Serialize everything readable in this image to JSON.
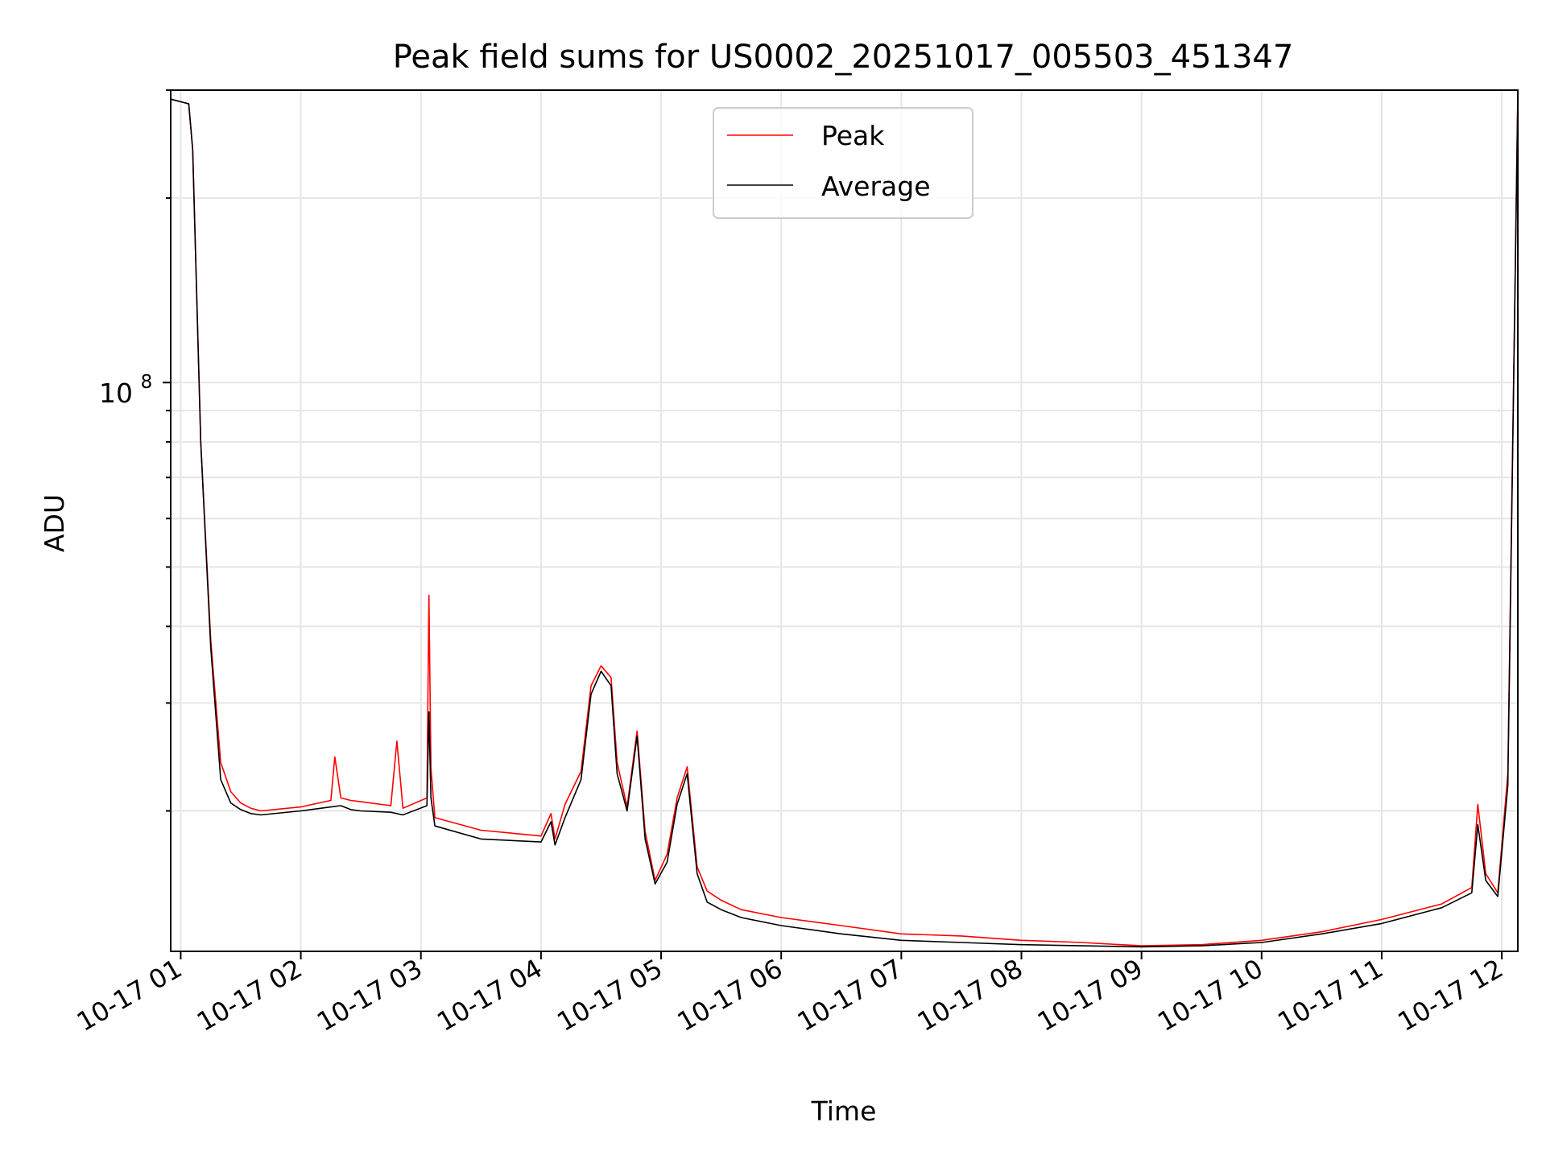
{
  "chart_data": {
    "type": "line",
    "title": "Peak field sums for US0002_20251017_005503_451347",
    "xlabel": "Time",
    "ylabel": "ADU",
    "yscale": "log",
    "ylim": [
      11800000,
      300000000
    ],
    "xlim": [
      "2025-10-17 00:55",
      "2025-10-17 12:08"
    ],
    "grid": true,
    "legend_position": "top-center",
    "x_ticks": [
      "10-17 01",
      "10-17 02",
      "10-17 03",
      "10-17 04",
      "10-17 05",
      "10-17 06",
      "10-17 07",
      "10-17 08",
      "10-17 09",
      "10-17 10",
      "10-17 11",
      "10-17 12"
    ],
    "y_tick_labels": [
      "10",
      "8"
    ],
    "series": [
      {
        "name": "Peak",
        "color": "#ff0000",
        "x": [
          "2025-10-17 00:55",
          "2025-10-17 01:04",
          "2025-10-17 01:06",
          "2025-10-17 01:10",
          "2025-10-17 01:15",
          "2025-10-17 01:20",
          "2025-10-17 01:25",
          "2025-10-17 01:30",
          "2025-10-17 01:35",
          "2025-10-17 01:40",
          "2025-10-17 02:00",
          "2025-10-17 02:15",
          "2025-10-17 02:17",
          "2025-10-17 02:20",
          "2025-10-17 02:25",
          "2025-10-17 02:30",
          "2025-10-17 02:45",
          "2025-10-17 02:48",
          "2025-10-17 02:51",
          "2025-10-17 03:03",
          "2025-10-17 03:04",
          "2025-10-17 03:05",
          "2025-10-17 03:07",
          "2025-10-17 03:30",
          "2025-10-17 04:00",
          "2025-10-17 04:05",
          "2025-10-17 04:07",
          "2025-10-17 04:12",
          "2025-10-17 04:20",
          "2025-10-17 04:25",
          "2025-10-17 04:30",
          "2025-10-17 04:35",
          "2025-10-17 04:38",
          "2025-10-17 04:43",
          "2025-10-17 04:48",
          "2025-10-17 04:52",
          "2025-10-17 04:57",
          "2025-10-17 05:03",
          "2025-10-17 05:08",
          "2025-10-17 05:13",
          "2025-10-17 05:18",
          "2025-10-17 05:23",
          "2025-10-17 05:30",
          "2025-10-17 05:40",
          "2025-10-17 06:00",
          "2025-10-17 06:30",
          "2025-10-17 07:00",
          "2025-10-17 07:30",
          "2025-10-17 08:00",
          "2025-10-17 08:30",
          "2025-10-17 09:00",
          "2025-10-17 09:30",
          "2025-10-17 10:00",
          "2025-10-17 10:30",
          "2025-10-17 11:00",
          "2025-10-17 11:30",
          "2025-10-17 11:45",
          "2025-10-17 11:48",
          "2025-10-17 11:52",
          "2025-10-17 11:58",
          "2025-10-17 12:03",
          "2025-10-17 12:08"
        ],
        "y": [
          290000000,
          285000000,
          240000000,
          80000000,
          38000000,
          24000000,
          21500000,
          20600000,
          20200000,
          20000000,
          20300000,
          20800000,
          24500000,
          21000000,
          20800000,
          20700000,
          20400000,
          26000000,
          20200000,
          21000000,
          45000000,
          23500000,
          19500000,
          18600000,
          18200000,
          19800000,
          18000000,
          20500000,
          23200000,
          32000000,
          34500000,
          33000000,
          24000000,
          20300000,
          27000000,
          18500000,
          15400000,
          17000000,
          21000000,
          23600000,
          16200000,
          14800000,
          14300000,
          13800000,
          13400000,
          13000000,
          12600000,
          12500000,
          12300000,
          12200000,
          12050000,
          12100000,
          12300000,
          12700000,
          13300000,
          14100000,
          15000000,
          20500000,
          15800000,
          14700000,
          23000000,
          295000000
        ]
      },
      {
        "name": "Average",
        "color": "#000000",
        "x": [
          "2025-10-17 00:55",
          "2025-10-17 01:04",
          "2025-10-17 01:06",
          "2025-10-17 01:10",
          "2025-10-17 01:15",
          "2025-10-17 01:20",
          "2025-10-17 01:25",
          "2025-10-17 01:30",
          "2025-10-17 01:35",
          "2025-10-17 01:40",
          "2025-10-17 02:00",
          "2025-10-17 02:15",
          "2025-10-17 02:20",
          "2025-10-17 02:25",
          "2025-10-17 02:30",
          "2025-10-17 02:45",
          "2025-10-17 02:51",
          "2025-10-17 03:03",
          "2025-10-17 03:04",
          "2025-10-17 03:05",
          "2025-10-17 03:07",
          "2025-10-17 03:30",
          "2025-10-17 04:00",
          "2025-10-17 04:05",
          "2025-10-17 04:07",
          "2025-10-17 04:12",
          "2025-10-17 04:20",
          "2025-10-17 04:25",
          "2025-10-17 04:30",
          "2025-10-17 04:35",
          "2025-10-17 04:38",
          "2025-10-17 04:43",
          "2025-10-17 04:48",
          "2025-10-17 04:52",
          "2025-10-17 04:57",
          "2025-10-17 05:03",
          "2025-10-17 05:08",
          "2025-10-17 05:13",
          "2025-10-17 05:18",
          "2025-10-17 05:23",
          "2025-10-17 05:30",
          "2025-10-17 05:40",
          "2025-10-17 06:00",
          "2025-10-17 06:30",
          "2025-10-17 07:00",
          "2025-10-17 07:30",
          "2025-10-17 08:00",
          "2025-10-17 08:30",
          "2025-10-17 09:00",
          "2025-10-17 09:30",
          "2025-10-17 10:00",
          "2025-10-17 10:30",
          "2025-10-17 11:00",
          "2025-10-17 11:30",
          "2025-10-17 11:45",
          "2025-10-17 11:48",
          "2025-10-17 11:52",
          "2025-10-17 11:58",
          "2025-10-17 12:03",
          "2025-10-17 12:08"
        ],
        "y": [
          290000000,
          285000000,
          240000000,
          80000000,
          37000000,
          22500000,
          20600000,
          20100000,
          19800000,
          19700000,
          20000000,
          20300000,
          20400000,
          20100000,
          20000000,
          19900000,
          19700000,
          20400000,
          29000000,
          21000000,
          18900000,
          18000000,
          17800000,
          19200000,
          17600000,
          19500000,
          22500000,
          31000000,
          33800000,
          32000000,
          23000000,
          20000000,
          26500000,
          18000000,
          15200000,
          16500000,
          20500000,
          23000000,
          15800000,
          14200000,
          13800000,
          13400000,
          13000000,
          12600000,
          12300000,
          12200000,
          12100000,
          12050000,
          12000000,
          12050000,
          12200000,
          12600000,
          13100000,
          13900000,
          14700000,
          19000000,
          15400000,
          14500000,
          22000000,
          295000000
        ]
      }
    ]
  }
}
